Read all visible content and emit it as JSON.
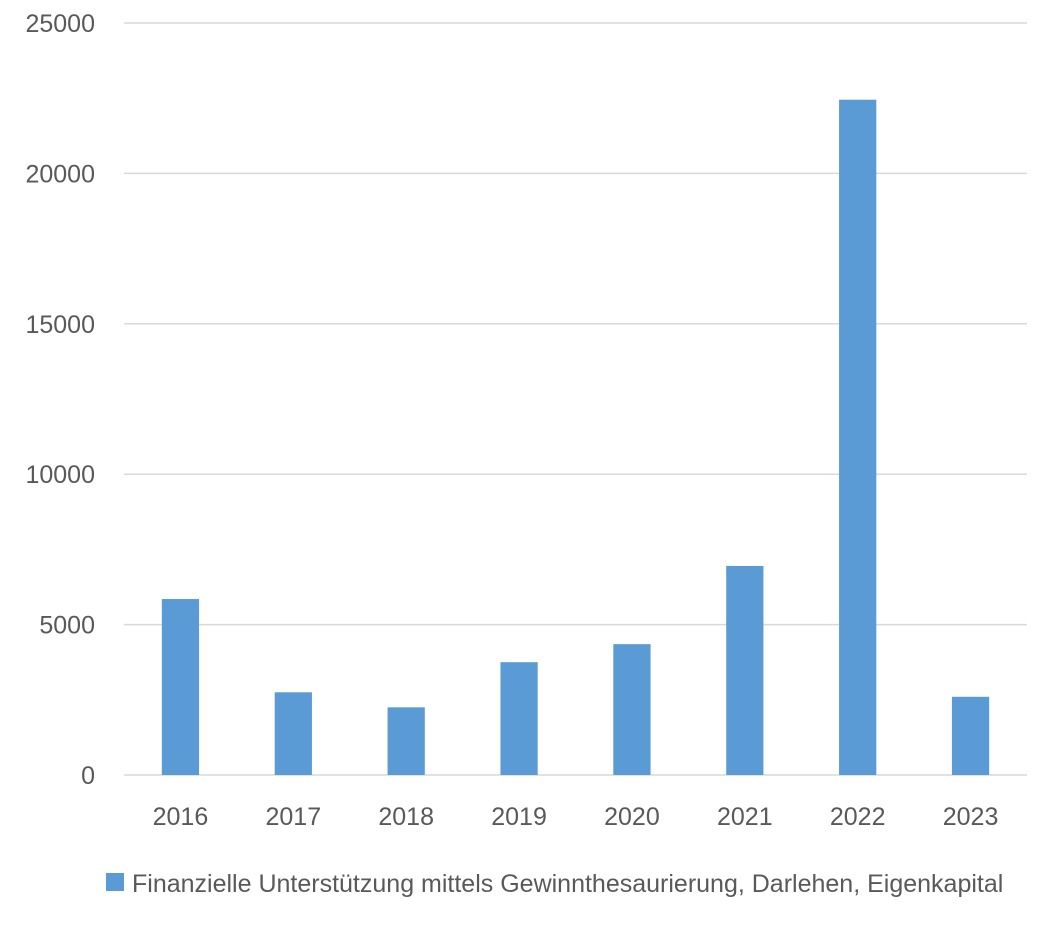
{
  "chart_data": {
    "type": "bar",
    "title": "",
    "xlabel": "",
    "ylabel": "",
    "categories": [
      "2016",
      "2017",
      "2018",
      "2019",
      "2020",
      "2021",
      "2022",
      "2023"
    ],
    "series": [
      {
        "name": "Finanzielle Unterstützung mittels Gewinnthesaurierung, Darlehen, Eigenkapital",
        "values": [
          5850,
          2750,
          2250,
          3750,
          4350,
          6950,
          22450,
          2600
        ],
        "color": "#5b9bd5"
      }
    ],
    "ylim": [
      0,
      25000
    ],
    "yticks": [
      "0",
      "5000",
      "10000",
      "15000",
      "20000",
      "25000"
    ],
    "grid": true,
    "legend": "bottom"
  }
}
